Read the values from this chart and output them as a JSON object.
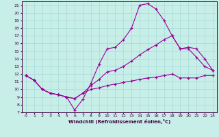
{
  "xlabel": "Windchill (Refroidissement éolien,°C)",
  "xlim": [
    -0.5,
    23.5
  ],
  "ylim": [
    7,
    21.5
  ],
  "xticks": [
    0,
    1,
    2,
    3,
    4,
    5,
    6,
    7,
    8,
    9,
    10,
    11,
    12,
    13,
    14,
    15,
    16,
    17,
    18,
    19,
    20,
    21,
    22,
    23
  ],
  "yticks": [
    7,
    8,
    9,
    10,
    11,
    12,
    13,
    14,
    15,
    16,
    17,
    18,
    19,
    20,
    21
  ],
  "background_color": "#c8eee8",
  "grid_color": "#aadddd",
  "line_color": "#990099",
  "line1_x": [
    0,
    1,
    2,
    3,
    4,
    5,
    6,
    7,
    8,
    9,
    10,
    11,
    12,
    13,
    14,
    15,
    16,
    17,
    18,
    19,
    20,
    21,
    22,
    23
  ],
  "line1_y": [
    11.8,
    11.2,
    10.0,
    9.5,
    9.3,
    9.0,
    7.3,
    8.7,
    10.8,
    13.3,
    15.3,
    15.5,
    16.5,
    18.0,
    21.0,
    21.2,
    20.5,
    19.0,
    17.0,
    15.3,
    15.3,
    14.2,
    13.0,
    12.5
  ],
  "line2_x": [
    0,
    1,
    2,
    3,
    4,
    5,
    6,
    7,
    8,
    9,
    10,
    11,
    12,
    13,
    14,
    15,
    16,
    17,
    18,
    19,
    20,
    21,
    22,
    23
  ],
  "line2_y": [
    11.8,
    11.2,
    10.0,
    9.5,
    9.3,
    9.0,
    8.8,
    9.5,
    10.5,
    11.3,
    12.3,
    12.5,
    13.0,
    13.7,
    14.5,
    15.2,
    15.8,
    16.5,
    17.0,
    15.3,
    15.5,
    15.3,
    14.0,
    12.5
  ],
  "line3_x": [
    0,
    1,
    2,
    3,
    4,
    5,
    6,
    7,
    8,
    9,
    10,
    11,
    12,
    13,
    14,
    15,
    16,
    17,
    18,
    19,
    20,
    21,
    22,
    23
  ],
  "line3_y": [
    11.8,
    11.2,
    10.0,
    9.5,
    9.3,
    9.0,
    8.8,
    9.5,
    10.0,
    10.2,
    10.5,
    10.7,
    10.9,
    11.1,
    11.3,
    11.5,
    11.6,
    11.8,
    12.0,
    11.5,
    11.5,
    11.5,
    11.8,
    11.8
  ]
}
